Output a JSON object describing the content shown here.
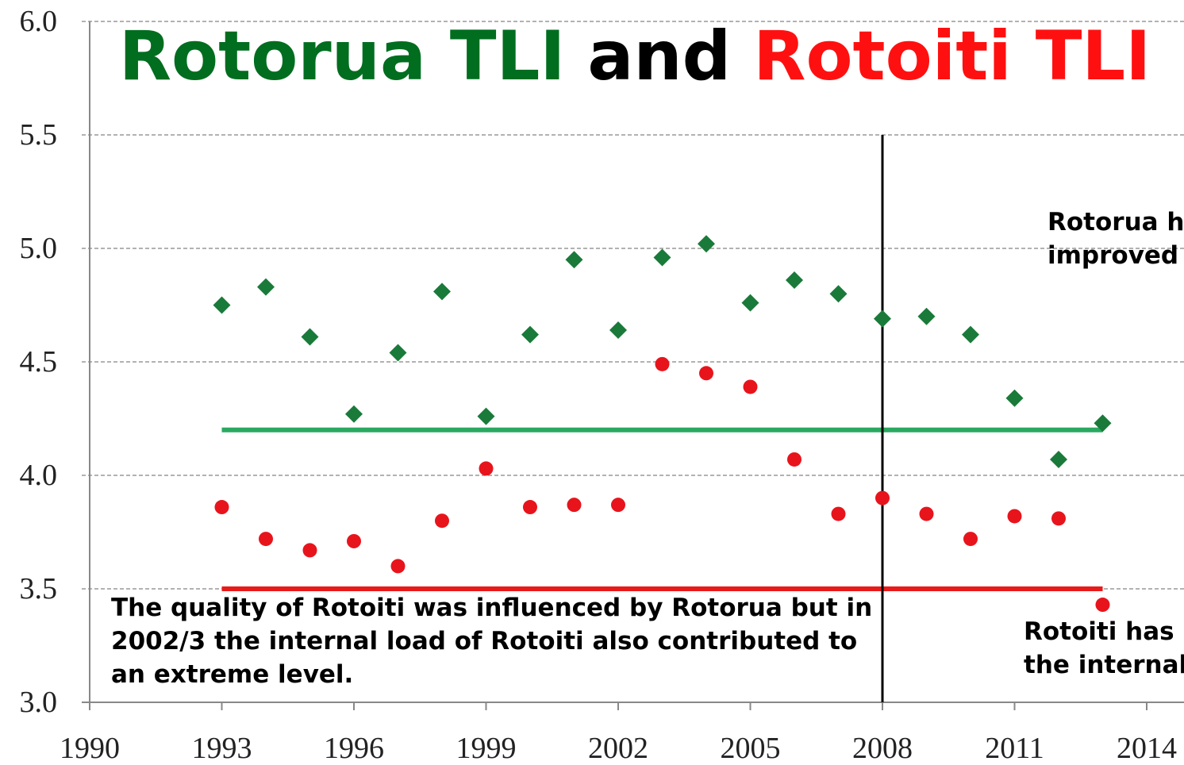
{
  "chart_data": {
    "type": "scatter",
    "title_parts": [
      {
        "text": "Rotorua TLI",
        "color": "#006d1f"
      },
      {
        "text": "and",
        "color": "#000000"
      },
      {
        "text": "Rotoiti TLI",
        "color": "#ff1010"
      }
    ],
    "xlim": [
      1990,
      2014
    ],
    "xticks": [
      1990,
      1993,
      1996,
      1999,
      2002,
      2005,
      2008,
      2011,
      2014
    ],
    "ylim": [
      3.0,
      6.0
    ],
    "yticks": [
      {
        "value": 3,
        "label": "3.0"
      },
      {
        "value": 3.5,
        "label": "3.5"
      },
      {
        "value": 4,
        "label": "4.0"
      },
      {
        "value": 4.5,
        "label": "4.5"
      },
      {
        "value": 5,
        "label": "5.0"
      },
      {
        "value": 5.5,
        "label": "5.5"
      },
      {
        "value": 6,
        "label": "6.0"
      }
    ],
    "grid": true,
    "x": [
      1993,
      1994,
      1995,
      1996,
      1997,
      1998,
      1999,
      2000,
      2001,
      2002,
      2003,
      2004,
      2005,
      2006,
      2007,
      2008,
      2009,
      2010,
      2011,
      2012,
      2013
    ],
    "series": [
      {
        "name": "Rotorua",
        "color": "#1a7a3a",
        "marker": "diamond",
        "values": [
          4.75,
          4.83,
          4.61,
          4.27,
          4.54,
          4.81,
          4.26,
          4.62,
          4.95,
          4.64,
          4.96,
          5.02,
          4.76,
          4.86,
          4.8,
          4.69,
          4.7,
          4.62,
          4.34,
          4.07,
          4.23
        ]
      },
      {
        "name": "Rotoiti",
        "color": "#e8141c",
        "marker": "circle",
        "values": [
          3.86,
          3.72,
          3.67,
          3.71,
          3.6,
          3.8,
          4.03,
          3.86,
          3.87,
          3.87,
          4.49,
          4.45,
          4.39,
          4.07,
          3.83,
          3.9,
          3.83,
          3.72,
          3.82,
          3.81,
          3.43
        ]
      }
    ],
    "hlines": [
      {
        "value": 4.2,
        "x": [
          1993,
          2013
        ],
        "color": "#2aa860"
      },
      {
        "value": 3.5,
        "x": [
          1993,
          2013
        ],
        "color": "#e81a1a"
      }
    ],
    "vlines": [
      {
        "value": 2008,
        "y": [
          3.0,
          5.5
        ],
        "color": "#000000"
      }
    ],
    "annotations": [
      {
        "lines": [
          "The quality of Rotoiti was influenced by Rotorua but in",
          "2002/3 the internal load of Rotoiti also contributed to",
          "an extreme level."
        ]
      },
      {
        "lines": [
          "Rotorua h",
          "improved"
        ]
      },
      {
        "lines": [
          "Rotoiti has i",
          "the internal"
        ]
      }
    ]
  }
}
